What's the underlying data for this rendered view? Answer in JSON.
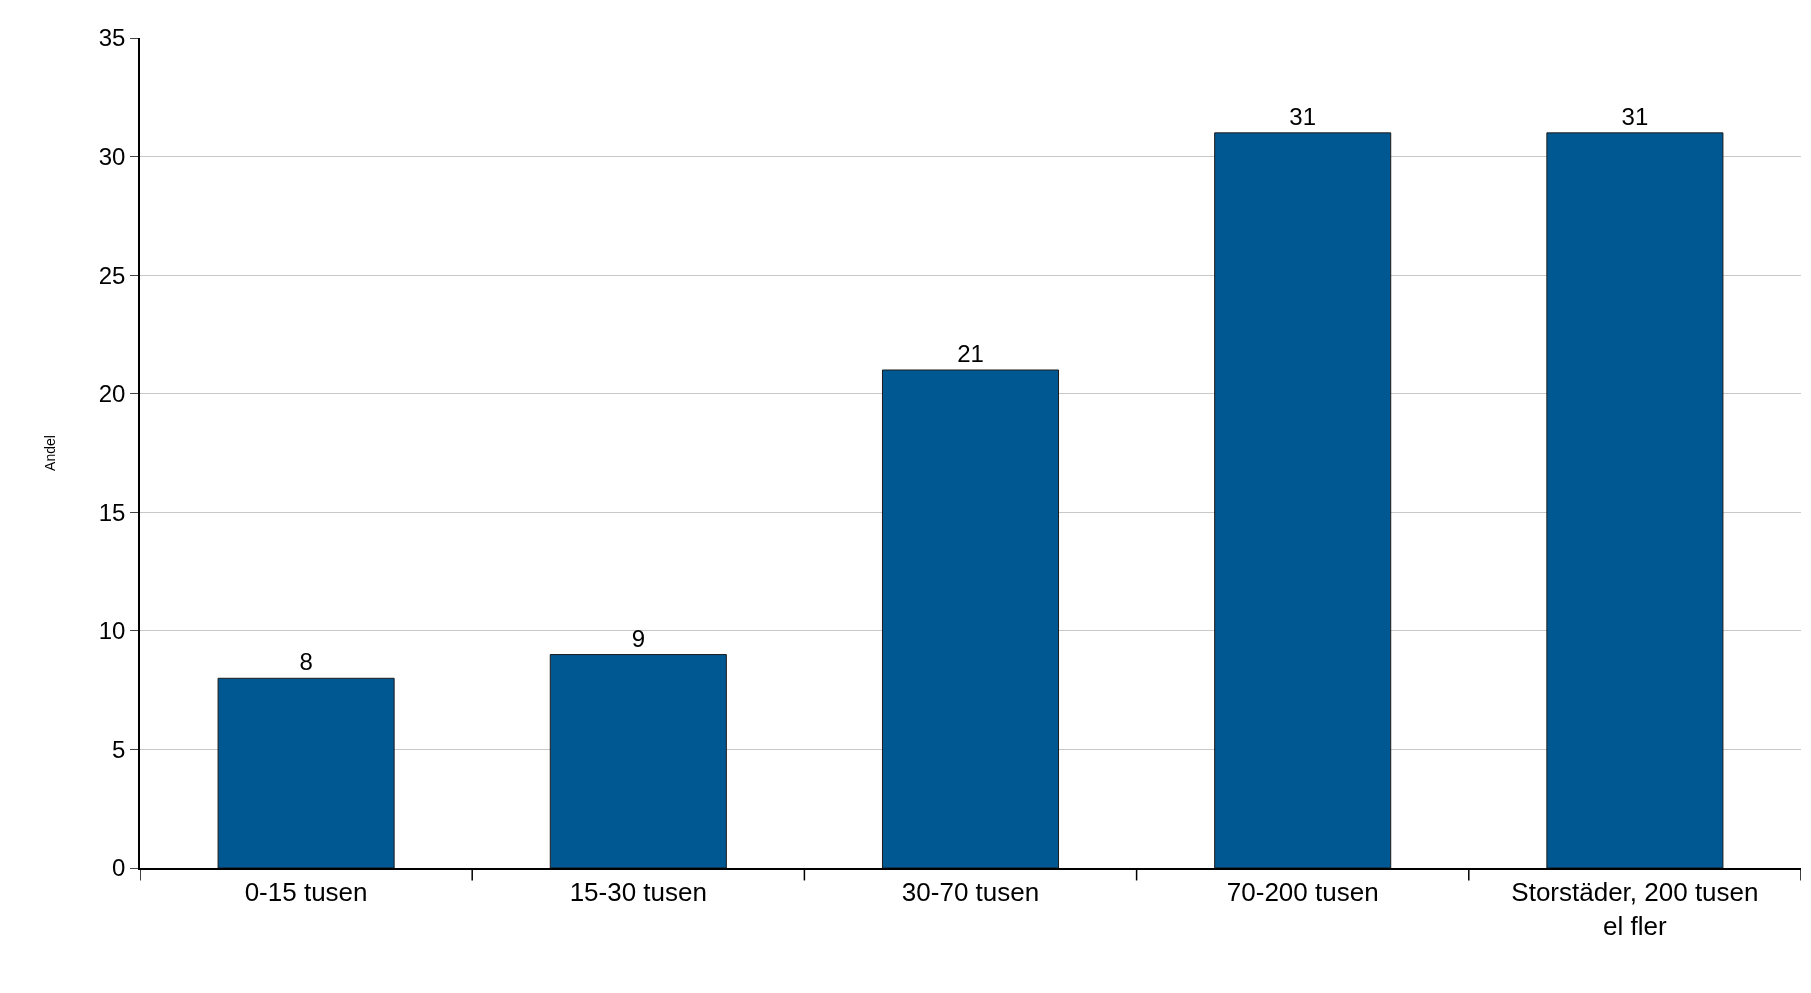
{
  "chart_data": {
    "type": "bar",
    "ylabel": "Andel",
    "categories": [
      "0-15 tusen",
      "15-30 tusen",
      "30-70 tusen",
      "70-200 tusen",
      "Storstäder, 200 tusen el fler"
    ],
    "values": [
      8,
      9,
      21,
      31,
      31
    ],
    "color": "#005893",
    "ylim": [
      0,
      35
    ],
    "yticks": [
      0,
      5,
      10,
      15,
      20,
      25,
      30,
      35
    ],
    "grid": "y",
    "data_labels": true
  }
}
